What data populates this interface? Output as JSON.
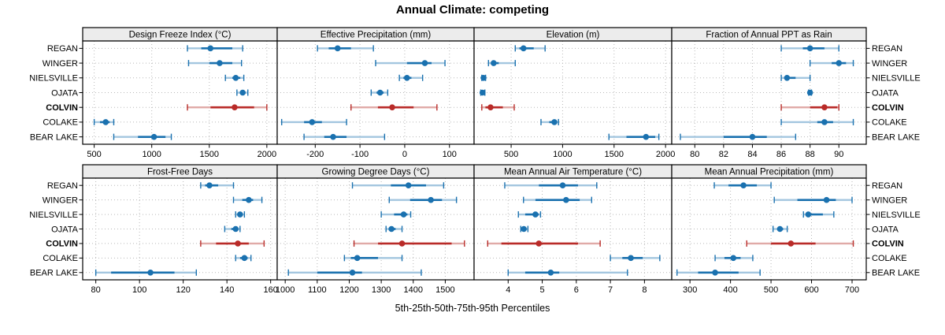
{
  "title": "Annual Climate: competing",
  "caption": "5th-25th-50th-75th-95th Percentiles",
  "highlight_site": "COLVIN",
  "colors": {
    "series_blue": "#1a71af",
    "series_blue_light": "#a3c6df",
    "highlight_red": "#b92b28",
    "highlight_red_light": "#e0aaa7",
    "strip_bg": "#ececec",
    "panel_border": "#000000",
    "grid": "#b8b8b8"
  },
  "chart_data": {
    "type": "dotplot",
    "subtype": "percentile-interval-trellis",
    "title": "Annual Climate: competing",
    "xlabel": "5th-25th-50th-75th-95th Percentiles",
    "legend_position": "none",
    "grid": "dotted",
    "percentile_labels": [
      "5th",
      "25th",
      "50th",
      "75th",
      "95th"
    ],
    "sites": [
      "REGAN",
      "WINGER",
      "NIELSVILLE",
      "OJATA",
      "COLVIN",
      "COLAKE",
      "BEAR LAKE"
    ],
    "panels": [
      {
        "title": "Design Freeze Index (°C)",
        "row": 0,
        "col": 0,
        "xlim": [
          400,
          2090
        ],
        "ticks": [
          500,
          1000,
          1500,
          2000
        ],
        "series": [
          {
            "site": "REGAN",
            "p": [
              1310,
              1430,
              1510,
              1700,
              1790
            ]
          },
          {
            "site": "WINGER",
            "p": [
              1320,
              1500,
              1590,
              1700,
              1780
            ]
          },
          {
            "site": "NIELSVILLE",
            "p": [
              1640,
              1700,
              1730,
              1770,
              1800
            ]
          },
          {
            "site": "OJATA",
            "p": [
              1740,
              1770,
              1790,
              1815,
              1835
            ]
          },
          {
            "site": "COLVIN",
            "p": [
              1310,
              1510,
              1720,
              1890,
              2000
            ]
          },
          {
            "site": "COLAKE",
            "p": [
              500,
              550,
              600,
              635,
              670
            ]
          },
          {
            "site": "BEAR LAKE",
            "p": [
              670,
              880,
              1020,
              1120,
              1170
            ]
          }
        ]
      },
      {
        "title": "Effective Precipitation (mm)",
        "row": 0,
        "col": 1,
        "xlim": [
          -285,
          155
        ],
        "ticks": [
          -200,
          -100,
          0,
          100
        ],
        "series": [
          {
            "site": "REGAN",
            "p": [
              -195,
              -170,
              -150,
              -120,
              -70
            ]
          },
          {
            "site": "WINGER",
            "p": [
              -65,
              5,
              45,
              60,
              90
            ]
          },
          {
            "site": "NIELSVILLE",
            "p": [
              -12,
              -3,
              5,
              15,
              40
            ]
          },
          {
            "site": "OJATA",
            "p": [
              -75,
              -63,
              -55,
              -47,
              -38
            ]
          },
          {
            "site": "COLVIN",
            "p": [
              -120,
              -60,
              -28,
              20,
              72
            ]
          },
          {
            "site": "COLAKE",
            "p": [
              -275,
              -225,
              -207,
              -185,
              -130
            ]
          },
          {
            "site": "BEAR LAKE",
            "p": [
              -225,
              -180,
              -160,
              -130,
              -45
            ]
          }
        ]
      },
      {
        "title": "Elevation (m)",
        "row": 0,
        "col": 2,
        "xlim": [
          140,
          2060
        ],
        "ticks": [
          500,
          1000,
          1500,
          2000
        ],
        "series": [
          {
            "site": "REGAN",
            "p": [
              540,
              580,
              620,
              720,
              830
            ]
          },
          {
            "site": "WINGER",
            "p": [
              280,
              310,
              330,
              380,
              540
            ]
          },
          {
            "site": "NIELSVILLE",
            "p": [
              215,
              225,
              232,
              242,
              252
            ]
          },
          {
            "site": "OJATA",
            "p": [
              205,
              215,
              222,
              232,
              245
            ]
          },
          {
            "site": "COLVIN",
            "p": [
              215,
              250,
              300,
              420,
              530
            ]
          },
          {
            "site": "COLAKE",
            "p": [
              790,
              870,
              920,
              940,
              960
            ]
          },
          {
            "site": "BEAR LAKE",
            "p": [
              1450,
              1620,
              1810,
              1900,
              1935
            ]
          }
        ]
      },
      {
        "title": "Fraction of Annual PPT as Rain",
        "row": 0,
        "col": 3,
        "xlim": [
          78.4,
          91.9
        ],
        "ticks": [
          80,
          82,
          84,
          86,
          88,
          90
        ],
        "series": [
          {
            "site": "REGAN",
            "p": [
              86,
              87.5,
              88,
              89,
              90
            ]
          },
          {
            "site": "WINGER",
            "p": [
              88,
              89.5,
              90,
              90.5,
              91
            ]
          },
          {
            "site": "NIELSVILLE",
            "p": [
              86,
              86.2,
              86.4,
              87,
              88
            ]
          },
          {
            "site": "OJATA",
            "p": [
              87.9,
              88,
              88,
              88,
              88.1
            ]
          },
          {
            "site": "COLVIN",
            "p": [
              86,
              88,
              89,
              89.9,
              90
            ]
          },
          {
            "site": "COLAKE",
            "p": [
              86,
              88.5,
              89,
              89.6,
              91
            ]
          },
          {
            "site": "BEAR LAKE",
            "p": [
              79,
              82,
              84,
              85,
              87
            ]
          }
        ]
      },
      {
        "title": "Frost-Free Days",
        "row": 1,
        "col": 0,
        "xlim": [
          74,
          163
        ],
        "ticks": [
          80,
          100,
          120,
          140,
          160
        ],
        "series": [
          {
            "site": "REGAN",
            "p": [
              128,
              130,
              132,
              136,
              143
            ]
          },
          {
            "site": "WINGER",
            "p": [
              143,
              147,
              150,
              152,
              156
            ]
          },
          {
            "site": "NIELSVILLE",
            "p": [
              144,
              145,
              146,
              147,
              148
            ]
          },
          {
            "site": "OJATA",
            "p": [
              139,
              142,
              144,
              145,
              146
            ]
          },
          {
            "site": "COLVIN",
            "p": [
              128,
              135,
              145,
              150,
              157
            ]
          },
          {
            "site": "COLAKE",
            "p": [
              144,
              146,
              148,
              149.5,
              151
            ]
          },
          {
            "site": "BEAR LAKE",
            "p": [
              80,
              87,
              105,
              116,
              126
            ]
          }
        ]
      },
      {
        "title": "Growing Degree Days (°C)",
        "row": 1,
        "col": 1,
        "xlim": [
          975,
          1590
        ],
        "ticks": [
          1000,
          1100,
          1200,
          1300,
          1400,
          1500
        ],
        "series": [
          {
            "site": "REGAN",
            "p": [
              1210,
              1330,
              1385,
              1440,
              1495
            ]
          },
          {
            "site": "WINGER",
            "p": [
              1325,
              1390,
              1455,
              1490,
              1535
            ]
          },
          {
            "site": "NIELSVILLE",
            "p": [
              1300,
              1340,
              1370,
              1382,
              1392
            ]
          },
          {
            "site": "OJATA",
            "p": [
              1315,
              1325,
              1332,
              1345,
              1365
            ]
          },
          {
            "site": "COLVIN",
            "p": [
              1215,
              1290,
              1365,
              1520,
              1560
            ]
          },
          {
            "site": "COLAKE",
            "p": [
              1185,
              1205,
              1225,
              1290,
              1365
            ]
          },
          {
            "site": "BEAR LAKE",
            "p": [
              1010,
              1100,
              1210,
              1240,
              1425
            ]
          }
        ]
      },
      {
        "title": "Mean Annual Air Temperature (°C)",
        "row": 1,
        "col": 2,
        "xlim": [
          3.0,
          8.8
        ],
        "ticks": [
          4,
          5,
          6,
          7,
          8
        ],
        "series": [
          {
            "site": "REGAN",
            "p": [
              3.9,
              4.9,
              5.6,
              6.05,
              6.6
            ]
          },
          {
            "site": "WINGER",
            "p": [
              4.45,
              4.8,
              5.7,
              6.1,
              6.45
            ]
          },
          {
            "site": "NIELSVILLE",
            "p": [
              4.3,
              4.5,
              4.8,
              4.9,
              4.95
            ]
          },
          {
            "site": "OJATA",
            "p": [
              4.37,
              4.42,
              4.46,
              4.5,
              4.58
            ]
          },
          {
            "site": "COLVIN",
            "p": [
              3.4,
              3.8,
              4.9,
              6.05,
              6.7
            ]
          },
          {
            "site": "COLAKE",
            "p": [
              7.0,
              7.35,
              7.6,
              7.95,
              8.45
            ]
          },
          {
            "site": "BEAR LAKE",
            "p": [
              4.0,
              4.5,
              5.25,
              5.5,
              7.5
            ]
          }
        ]
      },
      {
        "title": "Mean Annual Precipitation (mm)",
        "row": 1,
        "col": 3,
        "xlim": [
          255,
          735
        ],
        "ticks": [
          300,
          400,
          500,
          600,
          700
        ],
        "series": [
          {
            "site": "REGAN",
            "p": [
              360,
              395,
              432,
              465,
              500
            ]
          },
          {
            "site": "WINGER",
            "p": [
              508,
              565,
              637,
              660,
              700
            ]
          },
          {
            "site": "NIELSVILLE",
            "p": [
              580,
              585,
              592,
              628,
              655
            ]
          },
          {
            "site": "OJATA",
            "p": [
              505,
              515,
              522,
              530,
              540
            ]
          },
          {
            "site": "COLVIN",
            "p": [
              440,
              500,
              549,
              610,
              703
            ]
          },
          {
            "site": "COLAKE",
            "p": [
              362,
              385,
              407,
              425,
              455
            ]
          },
          {
            "site": "BEAR LAKE",
            "p": [
              268,
              320,
              362,
              420,
              473
            ]
          }
        ]
      }
    ]
  }
}
